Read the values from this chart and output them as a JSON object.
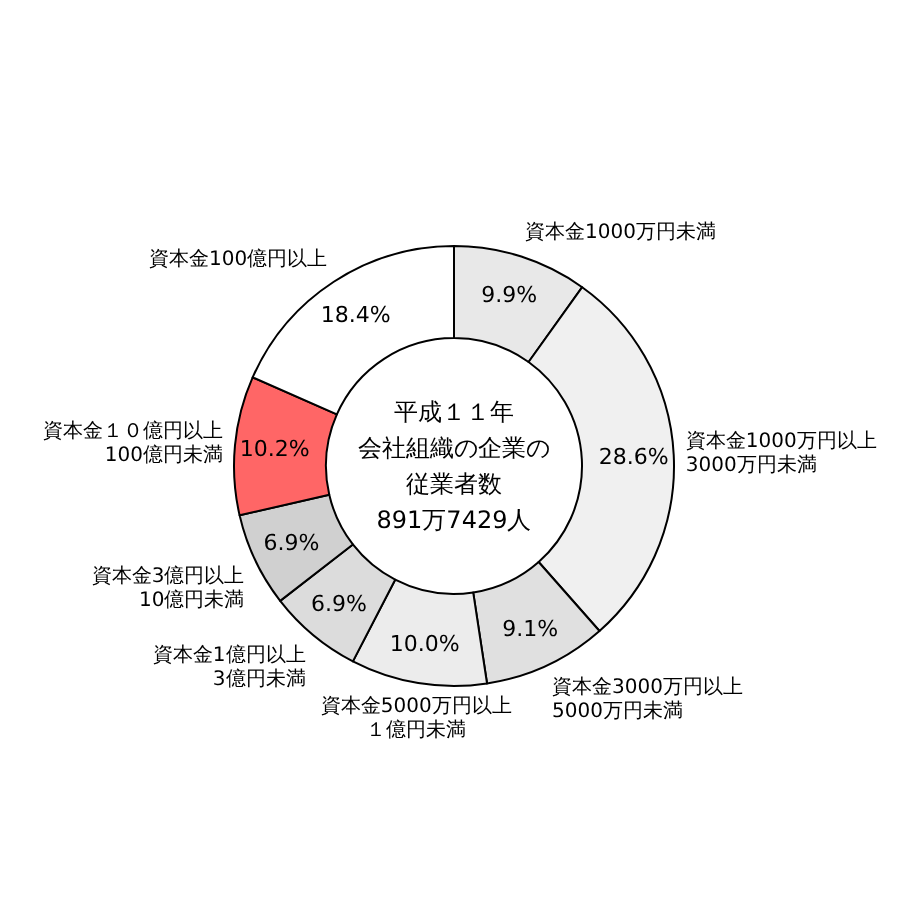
{
  "chart_data": {
    "type": "donut",
    "title": "平成１１年",
    "subtitle": "会社組織の企業の従業者数",
    "annotations": [
      "891万7429人"
    ],
    "categories": [
      "資本金1000万円未満",
      "資本金1000万円以上\n3000万円未満",
      "資本金3000万円以上\n5000万円未満",
      "資本金5000万円以上１億円未満",
      "資本金1億円以上\n3億円未満",
      "資本金3億円以上\n10億円未満",
      "資本金１０億円以上\n100億円未満",
      "資本金100億円以上"
    ],
    "values": [
      9.9,
      28.6,
      9.1,
      10.0,
      6.9,
      6.9,
      10.2,
      18.4
    ],
    "value_labels": [
      "9.9%",
      "28.6%",
      "9.1%",
      "10.0%",
      "6.9%",
      "6.9%",
      "10.2%",
      "18.4%"
    ],
    "colors": [
      "#e8e8e8",
      "#f0f0f0",
      "#e0e0e0",
      "#ececec",
      "#dcdcdc",
      "#d0d0d0",
      "#ff6666",
      "#ffffff"
    ],
    "legend": false
  }
}
